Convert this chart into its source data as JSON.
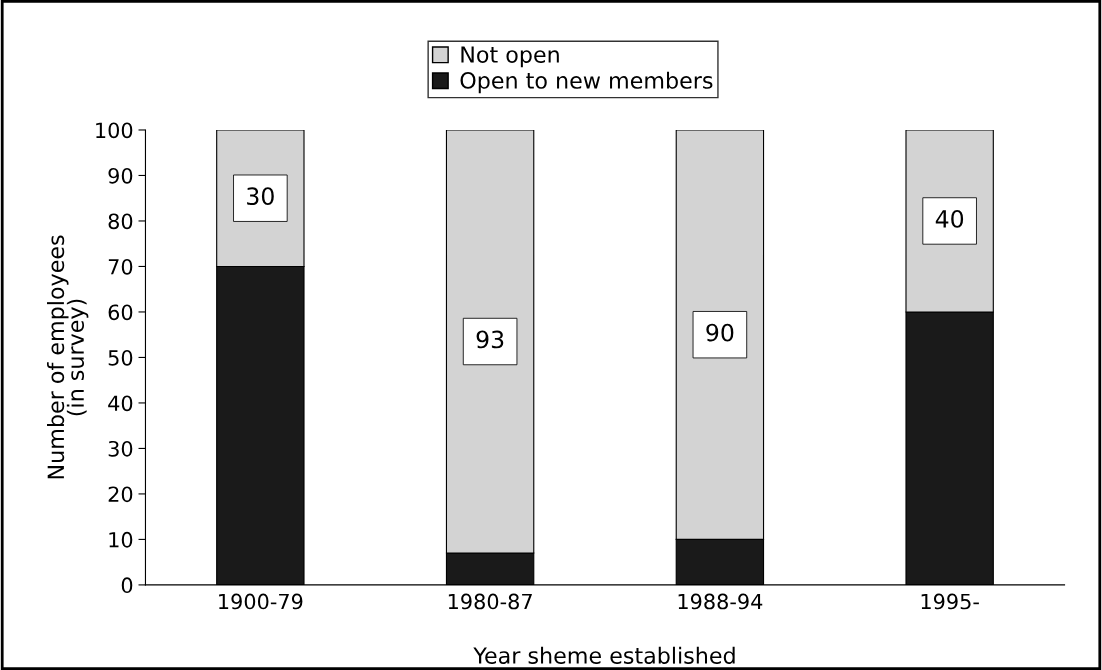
{
  "chart_data": {
    "type": "bar",
    "stacked": true,
    "xlabel": "Year sheme established",
    "ylabel": "Number of employees\n(in survey)",
    "categories": [
      "1900-79",
      "1980-87",
      "1988-94",
      "1995-"
    ],
    "series": [
      {
        "name": "Open to new members",
        "color": "#1a1a1a",
        "values": [
          70,
          7,
          10,
          60
        ]
      },
      {
        "name": "Not open",
        "color": "#d3d3d3",
        "values": [
          30,
          93,
          90,
          40
        ],
        "value_labels": [
          "30",
          "93",
          "90",
          "40"
        ]
      }
    ],
    "ylim": [
      0,
      100
    ],
    "yticks": [
      0,
      10,
      20,
      30,
      40,
      50,
      60,
      70,
      80,
      90,
      100
    ],
    "grid": false,
    "legend": "top"
  }
}
